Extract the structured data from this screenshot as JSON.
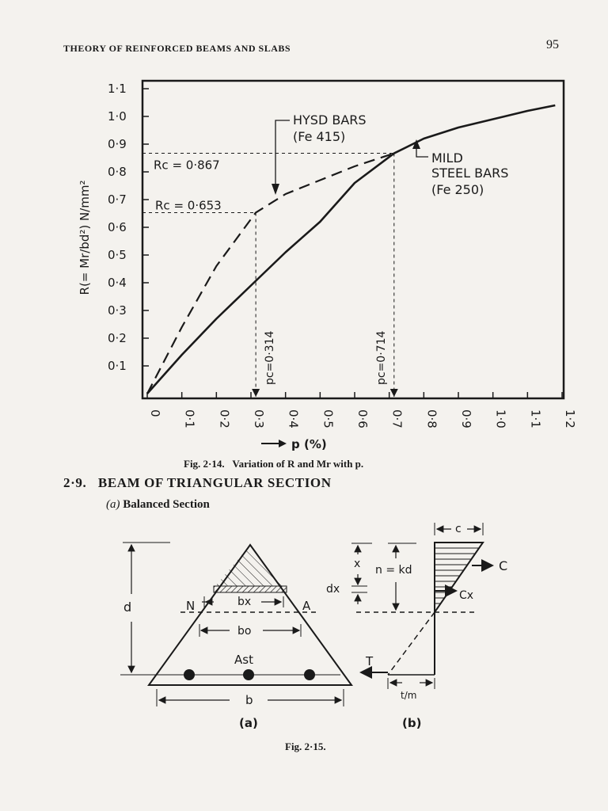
{
  "running_head": "THEORY OF REINFORCED BEAMS AND SLABS",
  "page_number": "95",
  "fig_2_14": {
    "caption_prefix": "Fig. 2·14.",
    "caption_text": "Variation of R and Mr with p."
  },
  "section": {
    "number": "2·9.",
    "title": "BEAM OF TRIANGULAR SECTION",
    "subheading_marker": "(a)",
    "subheading": "Balanced Section"
  },
  "fig_2_15": {
    "caption": "Fig. 2·15.",
    "label_a": "(a)",
    "label_b": "(b)",
    "labels": {
      "d": "d",
      "N": "N",
      "A": "A",
      "bx": "bx",
      "bo": "bo",
      "Ast": "Ast",
      "b": "b",
      "x": "x",
      "dx": "dx",
      "n_eq": "n = kd",
      "c": "c",
      "C": "C",
      "Cx": "Cx",
      "T": "T",
      "t_over_m": "t/m"
    }
  },
  "chart_data": {
    "type": "line",
    "ylabel": "R(= Mr/bd²) N/mm²",
    "xlabel": "p (%)",
    "xlim": [
      0,
      1.2
    ],
    "ylim": [
      0,
      1.1
    ],
    "x_ticks": [
      "0",
      "0·1",
      "0·2",
      "0·3",
      "0·4",
      "0·5",
      "0·6",
      "0·7",
      "0·8",
      "0·9",
      "1·0",
      "1·1",
      "1·2"
    ],
    "y_ticks": [
      "0·1",
      "0·2",
      "0·3",
      "0·4",
      "0·5",
      "0·6",
      "0·7",
      "0·8",
      "0·9",
      "1·0",
      "1·1"
    ],
    "series": [
      {
        "name": "HYSD BARS (Fe 415)",
        "style": "dashed",
        "x": [
          0,
          0.1,
          0.2,
          0.314,
          0.4,
          0.5,
          0.6,
          0.714
        ],
        "y": [
          0,
          0.24,
          0.46,
          0.653,
          0.72,
          0.77,
          0.82,
          0.867
        ]
      },
      {
        "name": "MILD STEEL BARS (Fe 250)",
        "style": "solid",
        "x": [
          0,
          0.1,
          0.2,
          0.3,
          0.4,
          0.5,
          0.6,
          0.714,
          0.8,
          0.9,
          1.0,
          1.1,
          1.18
        ],
        "y": [
          0,
          0.14,
          0.27,
          0.39,
          0.51,
          0.62,
          0.76,
          0.867,
          0.92,
          0.96,
          0.99,
          1.02,
          1.04
        ]
      }
    ],
    "annotations": {
      "rc_1": "Rc = 0·867",
      "rc_2": "Rc = 0·653",
      "pc_1": "pc=0·314",
      "pc_2": "pc=0·714",
      "hysd_label_1": "HYSD BARS",
      "hysd_label_2": "(Fe 415)",
      "mild_label_1": "MILD",
      "mild_label_2": "STEEL BARS",
      "mild_label_3": "(Fe 250)"
    },
    "markers": [
      {
        "x": 0.314,
        "y": 0.653
      },
      {
        "x": 0.714,
        "y": 0.867
      }
    ],
    "grid": false
  }
}
